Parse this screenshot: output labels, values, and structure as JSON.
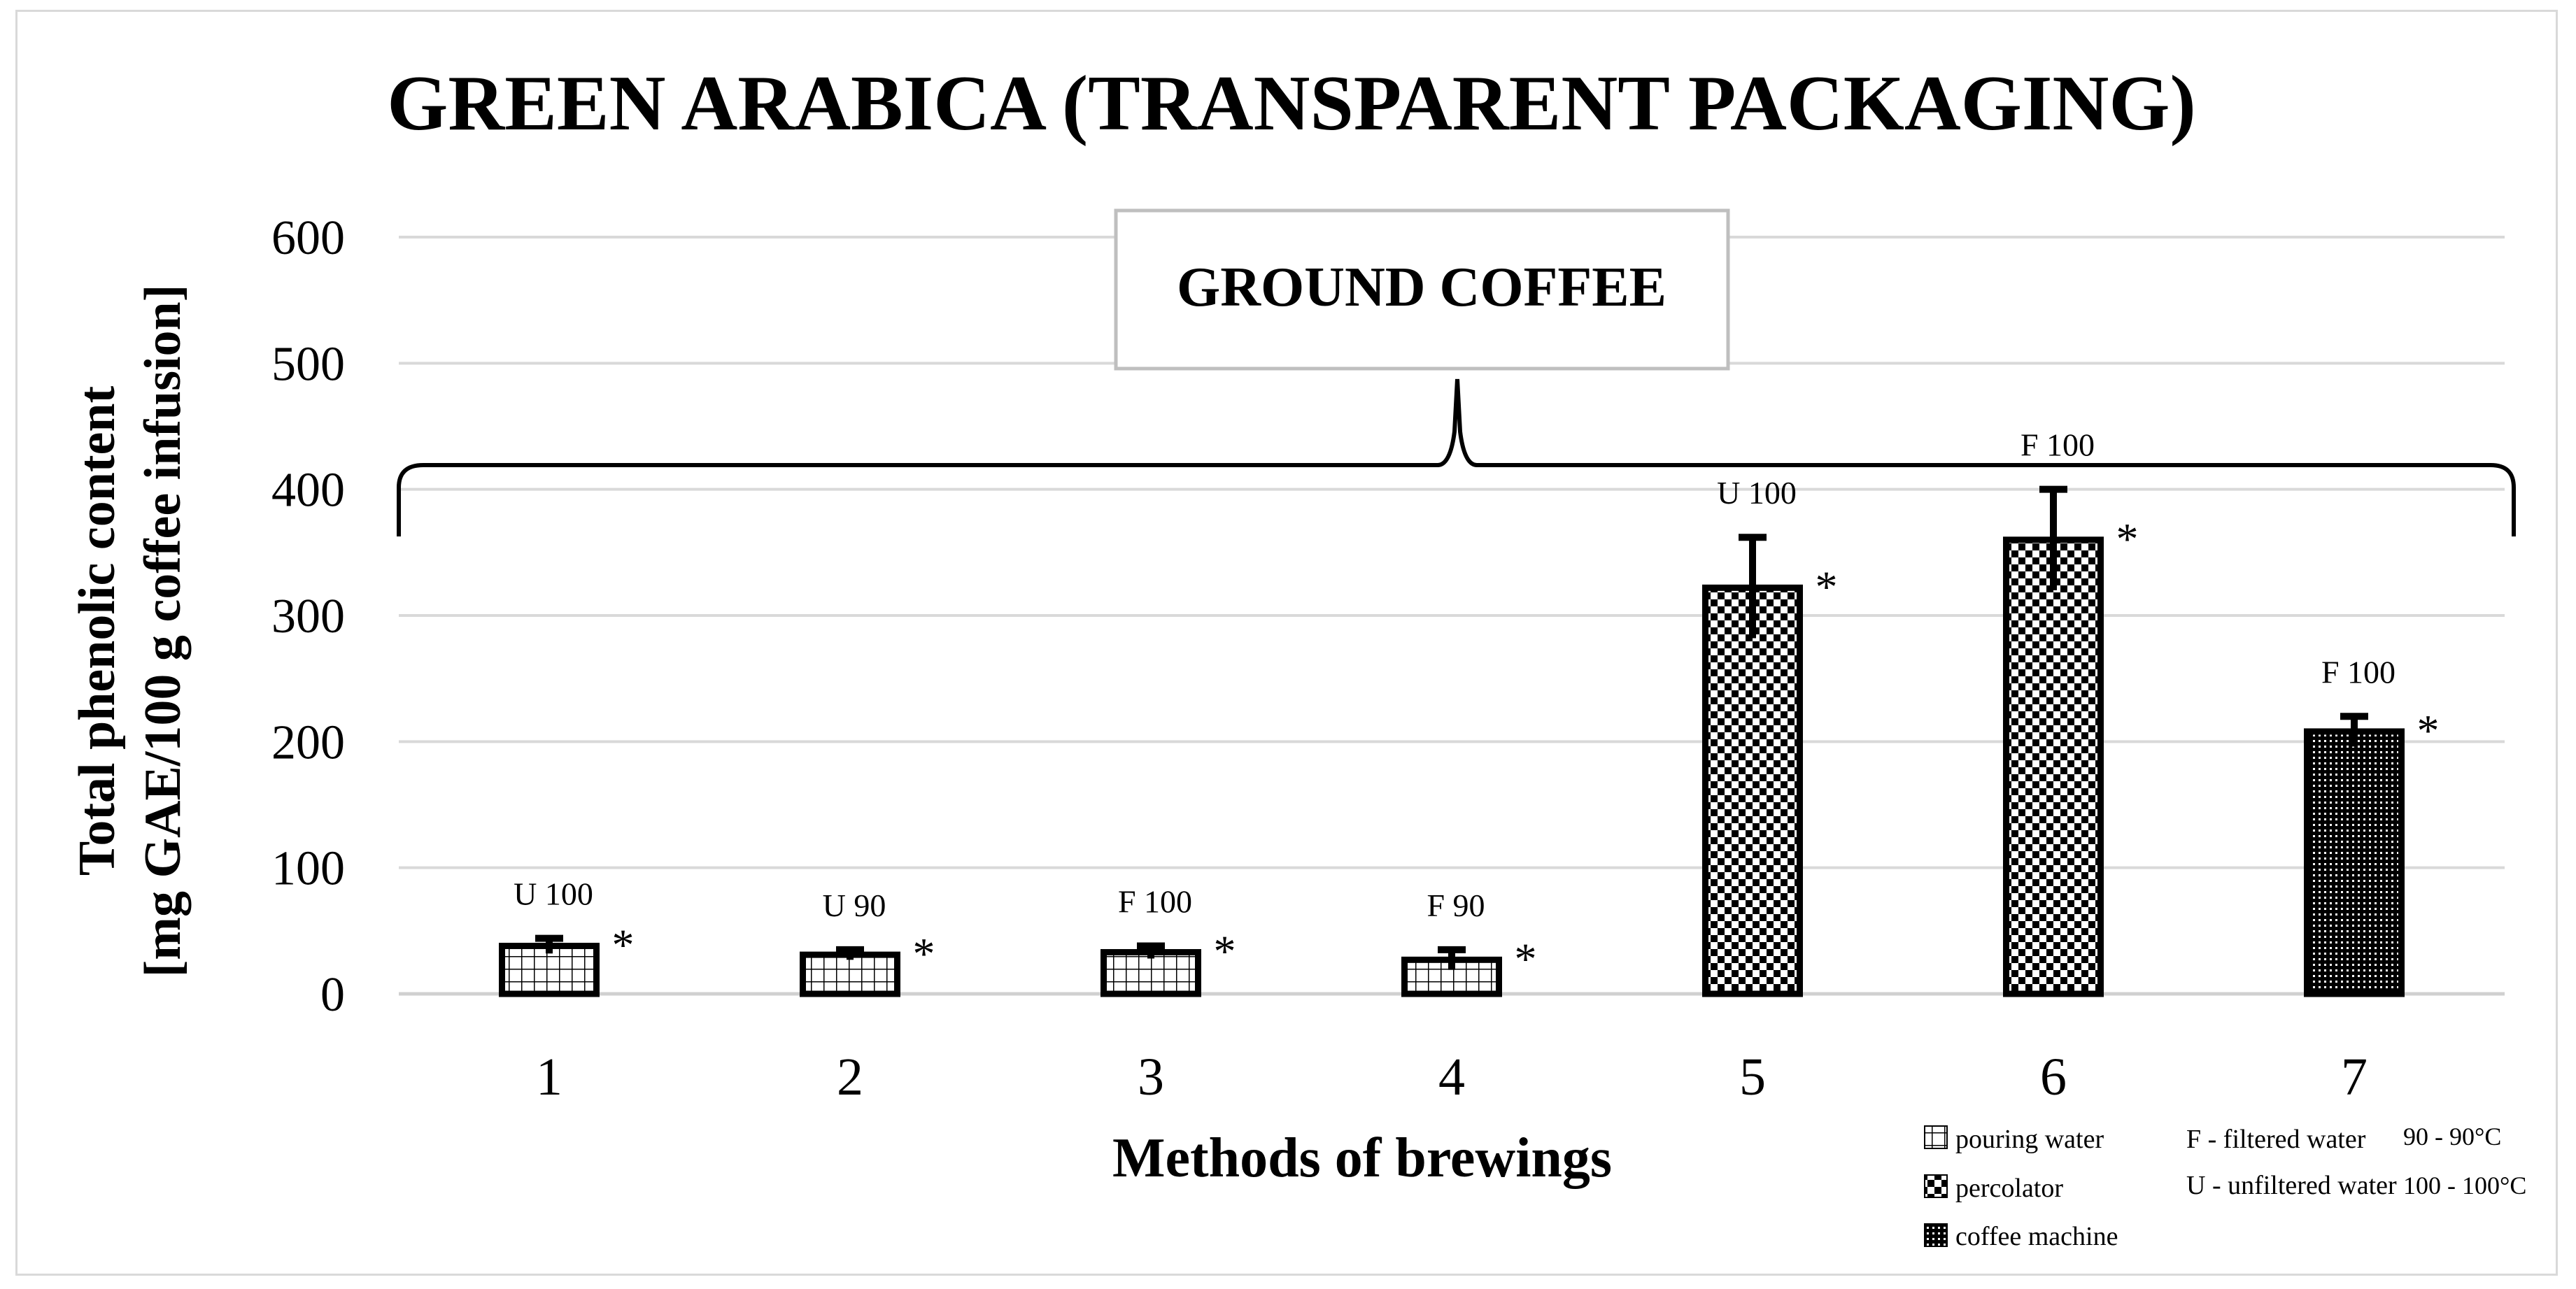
{
  "chart_data": {
    "type": "bar",
    "title": "GREEN ARABICA (TRANSPARENT PACKAGING)",
    "xlabel": "Methods of brewings",
    "ylabel_line1": "Total phenolic content",
    "ylabel_line2": "[mg GAE/100 g coffee infusion]",
    "ylim": [
      0,
      600
    ],
    "yticks": [
      "0",
      "100",
      "200",
      "300",
      "400",
      "500",
      "600"
    ],
    "grid": true,
    "categories": [
      "1",
      "2",
      "3",
      "4",
      "5",
      "6",
      "7"
    ],
    "values": [
      38,
      31,
      33,
      27,
      322,
      360,
      208
    ],
    "errors": [
      6,
      4,
      5,
      8,
      40,
      40,
      12
    ],
    "bar_labels": [
      "U 100",
      "U 90",
      "F 100",
      "F 90",
      "U 100",
      "F 100",
      "F 100"
    ],
    "significance": [
      "*",
      "*",
      "*",
      "*",
      "*",
      "*",
      "*"
    ],
    "patterns": [
      "grid",
      "grid",
      "grid",
      "grid",
      "checker",
      "checker",
      "dots"
    ],
    "group_label": "GROUND COFFEE",
    "legend": {
      "patterns": [
        {
          "icon": "grid",
          "label": "pouring water"
        },
        {
          "icon": "checker",
          "label": "percolator"
        },
        {
          "icon": "dots",
          "label": "coffee machine"
        }
      ],
      "water": [
        "F - filtered water",
        "U - unfiltered water"
      ],
      "temperature": [
        "90 - 90°C",
        "100 - 100°C"
      ]
    }
  }
}
